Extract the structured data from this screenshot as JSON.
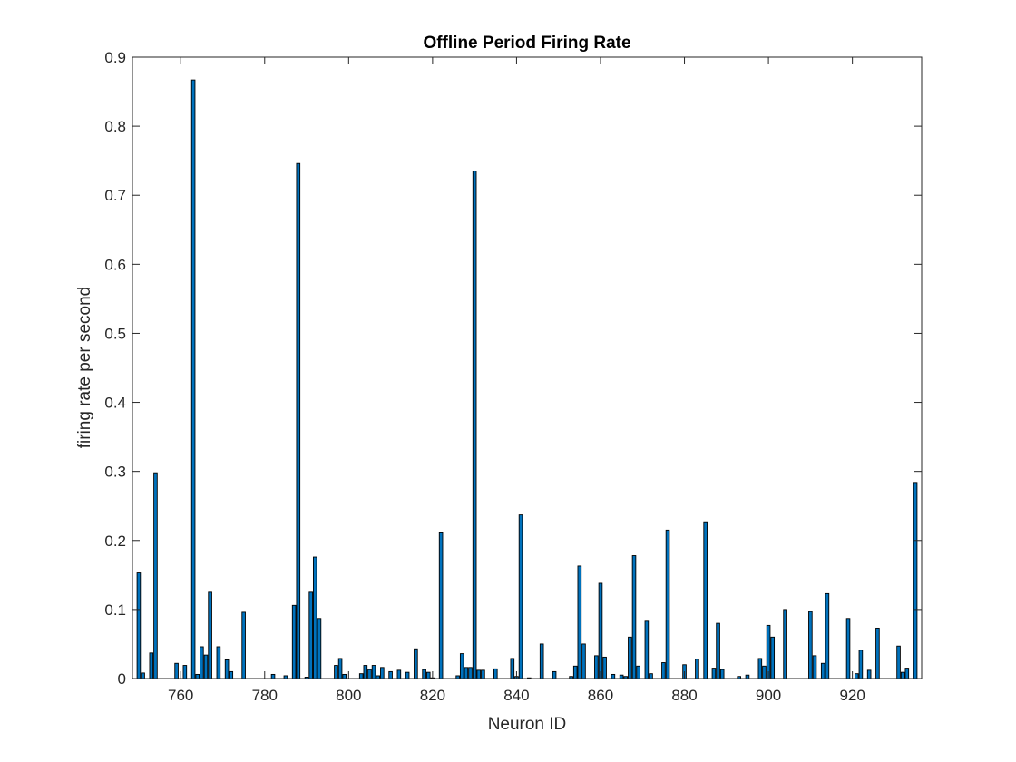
{
  "chart_data": {
    "type": "bar",
    "title": "Offline Period Firing Rate",
    "xlabel": "Neuron ID",
    "ylabel": "firing rate per second",
    "xlim": [
      748.5,
      936.5
    ],
    "ylim": [
      0,
      0.9
    ],
    "xticks": [
      "760",
      "780",
      "800",
      "820",
      "840",
      "860",
      "880",
      "900",
      "920"
    ],
    "yticks": [
      "0",
      "0.1",
      "0.2",
      "0.3",
      "0.4",
      "0.5",
      "0.6",
      "0.7",
      "0.8",
      "0.9"
    ],
    "grid": false,
    "bar_color": "#0072BD",
    "edge_color": "#000000",
    "x": [
      750,
      751,
      753,
      754,
      759,
      761,
      763,
      764,
      765,
      766,
      767,
      769,
      771,
      772,
      775,
      782,
      785,
      787,
      788,
      790,
      791,
      792,
      793,
      797,
      798,
      799,
      803,
      804,
      805,
      806,
      807,
      808,
      810,
      812,
      814,
      816,
      818,
      819,
      820,
      822,
      826,
      827,
      828,
      829,
      830,
      831,
      832,
      835,
      839,
      840,
      841,
      843,
      846,
      849,
      853,
      854,
      855,
      856,
      859,
      860,
      861,
      863,
      865,
      866,
      867,
      868,
      869,
      871,
      872,
      875,
      876,
      880,
      883,
      885,
      887,
      888,
      889,
      893,
      895,
      898,
      899,
      900,
      901,
      904,
      910,
      911,
      913,
      914,
      919,
      921,
      922,
      924,
      926,
      931,
      932,
      933,
      935
    ],
    "values": [
      0.153,
      0.008,
      0.037,
      0.298,
      0.022,
      0.019,
      0.867,
      0.006,
      0.046,
      0.034,
      0.125,
      0.046,
      0.027,
      0.01,
      0.096,
      0.006,
      0.004,
      0.106,
      0.746,
      0.002,
      0.125,
      0.176,
      0.087,
      0.019,
      0.029,
      0.006,
      0.007,
      0.019,
      0.013,
      0.019,
      0.004,
      0.016,
      0.01,
      0.012,
      0.009,
      0.043,
      0.013,
      0.009,
      0.001,
      0.211,
      0.004,
      0.036,
      0.016,
      0.016,
      0.735,
      0.012,
      0.012,
      0.014,
      0.029,
      0.003,
      0.237,
      0.001,
      0.05,
      0.01,
      0.003,
      0.018,
      0.163,
      0.05,
      0.033,
      0.138,
      0.031,
      0.006,
      0.005,
      0.003,
      0.06,
      0.178,
      0.018,
      0.083,
      0.007,
      0.023,
      0.215,
      0.02,
      0.028,
      0.227,
      0.015,
      0.08,
      0.013,
      0.003,
      0.005,
      0.029,
      0.018,
      0.077,
      0.06,
      0.1,
      0.097,
      0.033,
      0.022,
      0.123,
      0.087,
      0.007,
      0.041,
      0.012,
      0.073,
      0.047,
      0.009,
      0.015,
      0.284
    ]
  }
}
